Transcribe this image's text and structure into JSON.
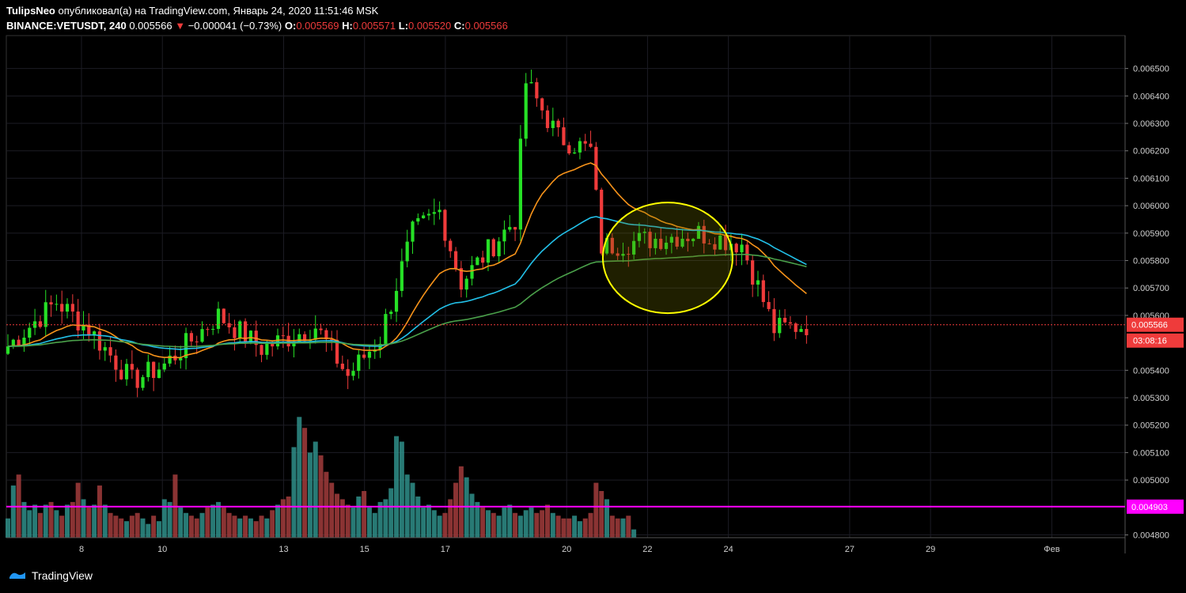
{
  "header": {
    "author": "TulipsNeo",
    "published_text": "опубликовал(а) на TradingView.com, Январь 24, 2020 11:51:46 MSK",
    "symbol": "BINANCE:VETUSDT, 240",
    "last_price": "0.005566",
    "change_arrow": "▼",
    "change": "−0.000041 (−0.73%)",
    "o_label": "O:",
    "o_value": "0.005569",
    "h_label": "H:",
    "h_value": "0.005571",
    "l_label": "L:",
    "l_value": "0.005520",
    "c_label": "C:",
    "c_value": "0.005566"
  },
  "footer": {
    "brand": "TradingView"
  },
  "colors": {
    "up": "#26e026",
    "down": "#ef3b3b",
    "ema_fast": "#f7931a",
    "ema_mid": "#22c0e8",
    "ema_slow": "#4aa04a",
    "vol_up": "#2f8f8a",
    "vol_down": "#a23c3c",
    "highlight": "#ffff00",
    "magenta": "#ff00ff",
    "grid": "#1c1c24"
  },
  "chart_data": {
    "type": "candlestick",
    "y_axis_labels": [
      "0.006500",
      "0.006400",
      "0.006300",
      "0.006200",
      "0.006100",
      "0.006000",
      "0.005900",
      "0.005800",
      "0.005700",
      "0.005600",
      "0.005400",
      "0.005300",
      "0.005200",
      "0.005100",
      "0.005000",
      "0.004800"
    ],
    "x_axis_labels": [
      "8",
      "10",
      "13",
      "15",
      "17",
      "20",
      "22",
      "24",
      "27",
      "29",
      "Фев"
    ],
    "ylim": [
      0.00479,
      0.00662
    ],
    "current_price_label": "0.005566",
    "current_price": 0.005566,
    "countdown_label": "03:08:16",
    "volume_line_label": "0.004903",
    "volume_line_value": 0.004903,
    "segments": [
      {
        "n": 10,
        "to": 0.00565
      },
      {
        "n": 6,
        "to": 0.00555
      },
      {
        "n": 8,
        "to": 0.00536
      },
      {
        "n": 6,
        "to": 0.00542
      },
      {
        "n": 10,
        "to": 0.0056
      },
      {
        "n": 8,
        "to": 0.00548
      },
      {
        "n": 10,
        "to": 0.00556
      },
      {
        "n": 6,
        "to": 0.00538
      },
      {
        "n": 6,
        "to": 0.00552
      },
      {
        "n": 6,
        "to": 0.0059
      },
      {
        "n": 5,
        "to": 0.00598
      },
      {
        "n": 4,
        "to": 0.00572
      },
      {
        "n": 6,
        "to": 0.00586
      },
      {
        "n": 4,
        "to": 0.00595
      },
      {
        "n": 2,
        "to": 0.00645
      },
      {
        "n": 6,
        "to": 0.00625
      },
      {
        "n": 6,
        "to": 0.0062
      },
      {
        "n": 2,
        "to": 0.00585
      },
      {
        "n": 10,
        "to": 0.00588
      },
      {
        "n": 8,
        "to": 0.0059
      },
      {
        "n": 8,
        "to": 0.00586
      },
      {
        "n": 6,
        "to": 0.00555
      },
      {
        "n": 6,
        "to": 0.005566
      }
    ],
    "volumes": [
      0.00486,
      0.00498,
      0.00502,
      0.00492,
      0.00489,
      0.00491,
      0.00488,
      0.00491,
      0.00492,
      0.00489,
      0.00487,
      0.00491,
      0.00492,
      0.00499,
      0.00493,
      0.0049,
      0.00491,
      0.00498,
      0.00491,
      0.00488,
      0.00487,
      0.00486,
      0.00485,
      0.00487,
      0.00488,
      0.00486,
      0.00484,
      0.00487,
      0.00485,
      0.00493,
      0.00492,
      0.00502,
      0.0049,
      0.00488,
      0.00487,
      0.00486,
      0.00488,
      0.0049,
      0.00491,
      0.00492,
      0.0049,
      0.00488,
      0.00487,
      0.00486,
      0.00487,
      0.00486,
      0.00485,
      0.00487,
      0.00486,
      0.00489,
      0.00491,
      0.00493,
      0.00494,
      0.00512,
      0.00523,
      0.00519,
      0.0051,
      0.00514,
      0.00509,
      0.00503,
      0.00499,
      0.00495,
      0.00493,
      0.00491,
      0.0049,
      0.00494,
      0.00496,
      0.0049,
      0.00488,
      0.00492,
      0.00493,
      0.00497,
      0.00516,
      0.00514,
      0.00502,
      0.00499,
      0.00494,
      0.0049,
      0.00491,
      0.00489,
      0.00487,
      0.00488,
      0.00493,
      0.00499,
      0.00505,
      0.00501,
      0.00495,
      0.00492,
      0.0049,
      0.00489,
      0.00488,
      0.00487,
      0.0049,
      0.00491,
      0.00488,
      0.00487,
      0.00489,
      0.0049,
      0.00488,
      0.00489,
      0.00491,
      0.00488,
      0.00487,
      0.00486,
      0.00486,
      0.00487,
      0.00485,
      0.00486,
      0.00488,
      0.00499,
      0.00496,
      0.00493,
      0.00487,
      0.00486,
      0.00486,
      0.00487,
      0.00482
    ],
    "ellipse_center": [
      0.00581,
      22.5
    ]
  }
}
